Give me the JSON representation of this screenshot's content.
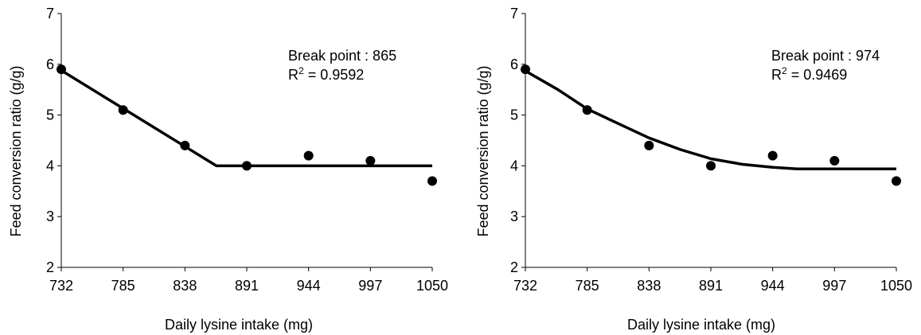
{
  "chart_data": [
    {
      "type": "scatter",
      "ylabel": "Feed conversion ratio (g/g)",
      "xlabel": "Daily lysine intake (mg)",
      "xlim": [
        732,
        1050
      ],
      "ylim": [
        2,
        7
      ],
      "x_ticks": [
        732,
        785,
        838,
        891,
        944,
        997,
        1050
      ],
      "y_ticks": [
        2,
        3,
        4,
        5,
        6,
        7
      ],
      "points": [
        {
          "x": 732,
          "y": 5.9
        },
        {
          "x": 785,
          "y": 5.1
        },
        {
          "x": 838,
          "y": 4.4
        },
        {
          "x": 891,
          "y": 4.0
        },
        {
          "x": 944,
          "y": 4.2
        },
        {
          "x": 997,
          "y": 4.1
        },
        {
          "x": 1050,
          "y": 3.7
        }
      ],
      "fit": {
        "model": "linear-broken-line",
        "points": [
          {
            "x": 732,
            "y": 5.88
          },
          {
            "x": 865,
            "y": 4.0
          },
          {
            "x": 1050,
            "y": 4.0
          }
        ]
      },
      "annotation": {
        "break_point_label": "Break point : 865",
        "r2_prefix": "R",
        "r2_sup": "2",
        "r2_value": " = 0.9592"
      },
      "grid": false
    },
    {
      "type": "scatter",
      "ylabel": "Feed conversion ratio (g/g)",
      "xlabel": "Daily lysine intake (mg)",
      "xlim": [
        732,
        1050
      ],
      "ylim": [
        2,
        7
      ],
      "x_ticks": [
        732,
        785,
        838,
        891,
        944,
        997,
        1050
      ],
      "y_ticks": [
        2,
        3,
        4,
        5,
        6,
        7
      ],
      "points": [
        {
          "x": 732,
          "y": 5.9
        },
        {
          "x": 785,
          "y": 5.1
        },
        {
          "x": 838,
          "y": 4.4
        },
        {
          "x": 891,
          "y": 4.0
        },
        {
          "x": 944,
          "y": 4.2
        },
        {
          "x": 997,
          "y": 4.1
        },
        {
          "x": 1050,
          "y": 3.7
        }
      ],
      "fit": {
        "model": "quadratic-broken-line",
        "points": [
          {
            "x": 732,
            "y": 5.87
          },
          {
            "x": 760,
            "y": 5.5
          },
          {
            "x": 785,
            "y": 5.12
          },
          {
            "x": 810,
            "y": 4.85
          },
          {
            "x": 838,
            "y": 4.55
          },
          {
            "x": 865,
            "y": 4.32
          },
          {
            "x": 891,
            "y": 4.14
          },
          {
            "x": 918,
            "y": 4.03
          },
          {
            "x": 944,
            "y": 3.97
          },
          {
            "x": 965,
            "y": 3.94
          },
          {
            "x": 1050,
            "y": 3.94
          }
        ]
      },
      "annotation": {
        "break_point_label": "Break point : 974",
        "r2_prefix": "R",
        "r2_sup": "2",
        "r2_value": " = 0.9469"
      },
      "grid": false
    }
  ]
}
